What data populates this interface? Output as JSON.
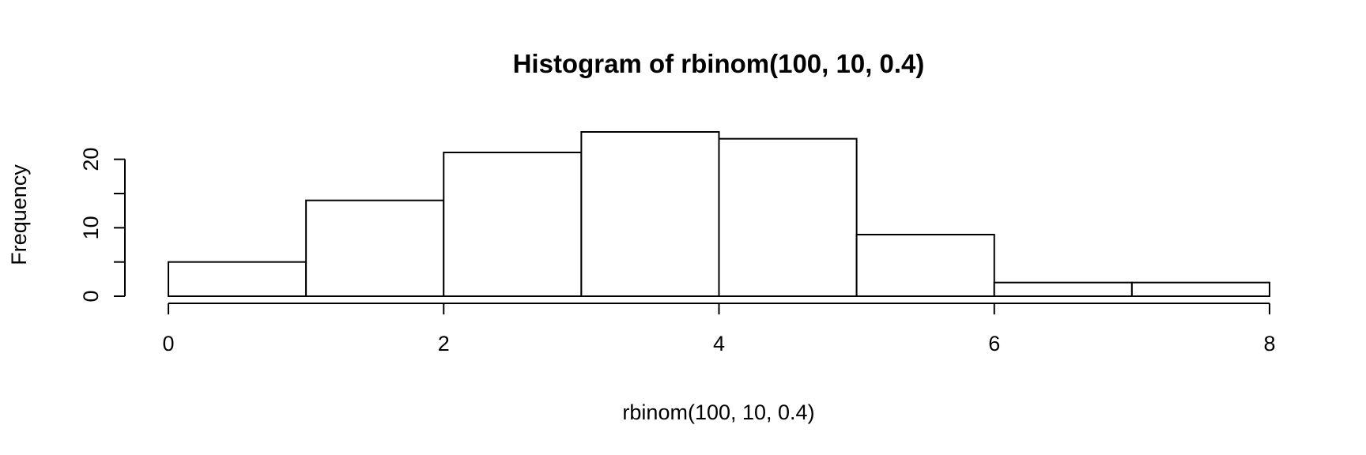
{
  "chart_data": {
    "type": "bar",
    "title": "Histogram of rbinom(100, 10, 0.4)",
    "xlabel": "rbinom(100, 10, 0.4)",
    "ylabel": "Frequency",
    "bins": [
      {
        "from": 0,
        "to": 1,
        "count": 5
      },
      {
        "from": 1,
        "to": 2,
        "count": 14
      },
      {
        "from": 2,
        "to": 3,
        "count": 21
      },
      {
        "from": 3,
        "to": 4,
        "count": 24
      },
      {
        "from": 4,
        "to": 5,
        "count": 23
      },
      {
        "from": 5,
        "to": 6,
        "count": 9
      },
      {
        "from": 6,
        "to": 7,
        "count": 2
      },
      {
        "from": 7,
        "to": 8,
        "count": 2
      }
    ],
    "xlim": [
      0,
      8
    ],
    "ylim": [
      0,
      24
    ],
    "x_ticks": [
      0,
      2,
      4,
      6,
      8
    ],
    "x_tick_labels": [
      "0",
      "2",
      "4",
      "6",
      "8"
    ],
    "y_ticks": [
      0,
      5,
      10,
      15,
      20
    ],
    "y_tick_labels": [
      "0",
      "",
      "10",
      "",
      "20"
    ],
    "grid": false,
    "legend": "none",
    "bar_fill": "#ffffff",
    "bar_stroke": "#000000"
  }
}
